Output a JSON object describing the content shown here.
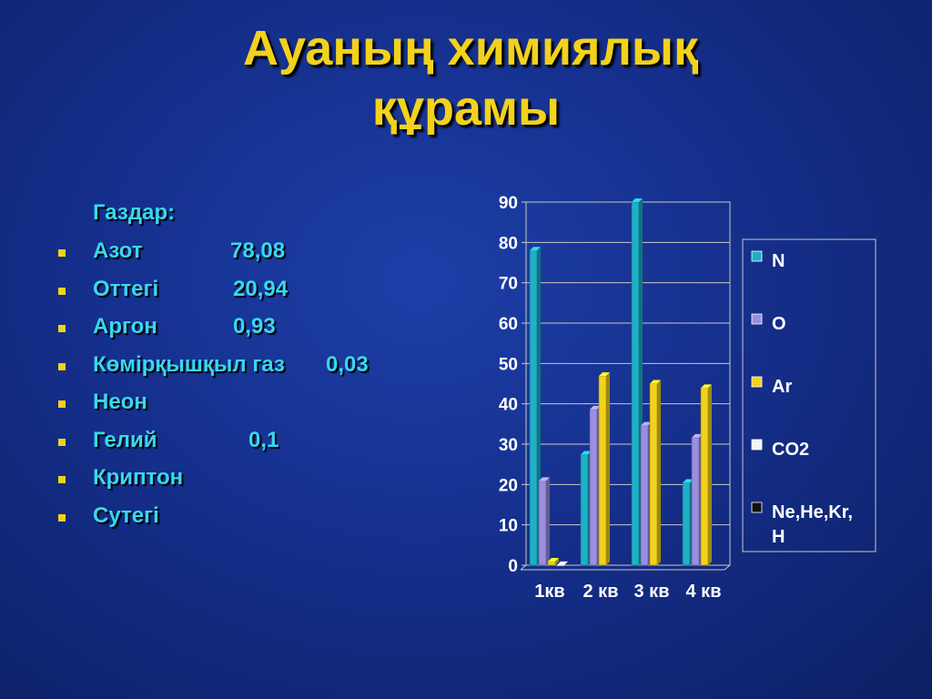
{
  "title": {
    "line1": "Ауаның химиялық",
    "line2": "құрамы"
  },
  "gases": {
    "header": "Газдар:",
    "items": [
      {
        "name": "Азот",
        "value": "78,08"
      },
      {
        "name": "Оттегі",
        "value": "20,94"
      },
      {
        "name": "Аргон",
        "value": "0,93"
      },
      {
        "name": "Көмірқышқыл газ",
        "value": "0,03"
      },
      {
        "name": "Неон",
        "value": ""
      },
      {
        "name": "Гелий",
        "value": "0,1"
      },
      {
        "name": "Криптон",
        "value": ""
      },
      {
        "name": "Сутегі",
        "value": ""
      }
    ]
  },
  "colors": {
    "title": "#f2d21c",
    "list_text": "#3ad6f0",
    "bullet": "#f2d21c"
  },
  "chart_data": {
    "type": "bar",
    "categories": [
      "1кв",
      "2 кв",
      "3 кв",
      "4 кв"
    ],
    "series": [
      {
        "name": "N",
        "values": [
          78,
          27.4,
          90,
          20.4
        ],
        "color": "#1fb0c8"
      },
      {
        "name": "O",
        "values": [
          20.9,
          38.6,
          34.6,
          31.6
        ],
        "color": "#9a8ee0"
      },
      {
        "name": "Ar",
        "values": [
          0.9,
          46.9,
          45,
          43.9
        ],
        "color": "#f2d21c"
      },
      {
        "name": "CO2",
        "values": [
          0.03,
          0,
          0,
          0
        ],
        "color": "#f4f4f0"
      },
      {
        "name": "Ne,He,Kr, H",
        "values": [
          0,
          0,
          0,
          0
        ],
        "color": "#111111"
      }
    ],
    "yticks": [
      0,
      10,
      20,
      30,
      40,
      50,
      60,
      70,
      80,
      90
    ],
    "ylim": [
      0,
      90
    ],
    "grid": true,
    "legend_position": "right"
  }
}
